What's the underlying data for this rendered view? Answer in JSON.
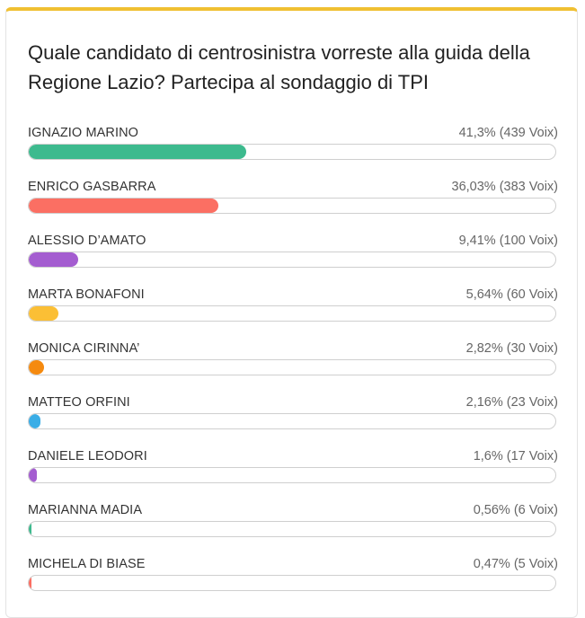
{
  "poll": {
    "title": "Quale candidato di centrosinistra vorreste alla guida della Regione Lazio? Partecipa al sondaggio di TPI",
    "accent_color": "#f0c032",
    "options": [
      {
        "name": "IGNAZIO MARINO",
        "stats": "41,3% (439 Voix)",
        "percent": 41.3,
        "color": "#3dba8e"
      },
      {
        "name": "ENRICO GASBARRA",
        "stats": "36,03% (383 Voix)",
        "percent": 36.03,
        "color": "#fb6f63"
      },
      {
        "name": "ALESSIO D’AMATO",
        "stats": "9,41% (100 Voix)",
        "percent": 9.41,
        "color": "#a45dd0"
      },
      {
        "name": "MARTA BONAFONI",
        "stats": "5,64% (60 Voix)",
        "percent": 5.64,
        "color": "#fbbf35"
      },
      {
        "name": "MONICA CIRINNA’",
        "stats": "2,82% (30 Voix)",
        "percent": 2.82,
        "color": "#f58a0f"
      },
      {
        "name": "MATTEO ORFINI",
        "stats": "2,16% (23 Voix)",
        "percent": 2.16,
        "color": "#3aade6"
      },
      {
        "name": "DANIELE LEODORI",
        "stats": "1,6% (17 Voix)",
        "percent": 1.6,
        "color": "#a45dd0"
      },
      {
        "name": "MARIANNA MADIA",
        "stats": "0,56% (6 Voix)",
        "percent": 0.56,
        "color": "#3dba8e"
      },
      {
        "name": "MICHELA DI BIASE",
        "stats": "0,47% (5 Voix)",
        "percent": 0.47,
        "color": "#fb6f63"
      }
    ]
  }
}
